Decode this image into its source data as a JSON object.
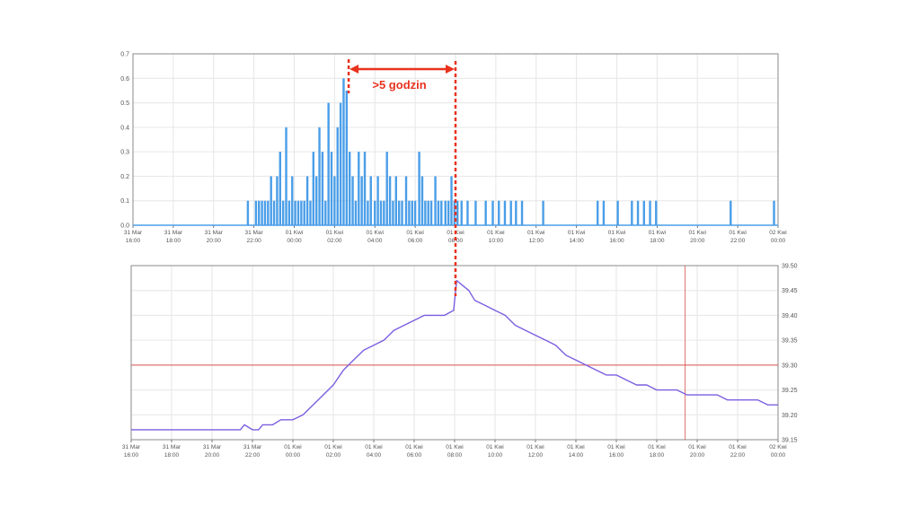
{
  "colors": {
    "bar": "#4a9ee8",
    "line": "#7c5ee0",
    "annotation": "#e8321e",
    "reference": "#d9534f",
    "grid": "#e6e6e6",
    "axis": "#555555",
    "frame": "#888888"
  },
  "x_ticks": [
    [
      "31 Mar",
      "16:00"
    ],
    [
      "31 Mar",
      "18:00"
    ],
    [
      "31 Mar",
      "20:00"
    ],
    [
      "31 Mar",
      "22:00"
    ],
    [
      "01 Kwi",
      "00:00"
    ],
    [
      "01 Kwi",
      "02:00"
    ],
    [
      "01 Kwi",
      "04:00"
    ],
    [
      "01 Kwi",
      "06:00"
    ],
    [
      "01 Kwi",
      "08:00"
    ],
    [
      "01 Kwi",
      "10:00"
    ],
    [
      "01 Kwi",
      "12:00"
    ],
    [
      "01 Kwi",
      "14:00"
    ],
    [
      "01 Kwi",
      "16:00"
    ],
    [
      "01 Kwi",
      "18:00"
    ],
    [
      "01 Kwi",
      "20:00"
    ],
    [
      "01 Kwi",
      "22:00"
    ],
    [
      "02 Kwi",
      "00:00"
    ]
  ],
  "annotation": {
    "label": ">5 godzin",
    "from_hour": 2.7,
    "to_hour": 8.0
  },
  "chart_data": [
    {
      "type": "bar",
      "x_unit": "hours relative to 01 Kwi 00:00",
      "xlim": [
        -8,
        24
      ],
      "ylim": [
        0,
        0.7
      ],
      "yticks": [
        "0.0",
        "0.1",
        "0.2",
        "0.3",
        "0.4",
        "0.5",
        "0.6",
        "0.7"
      ],
      "y_axis_side": "left",
      "grid": true,
      "legend": "none",
      "points": [
        [
          -2.3,
          0.1
        ],
        [
          -1.9,
          0.1
        ],
        [
          -1.75,
          0.1
        ],
        [
          -1.6,
          0.1
        ],
        [
          -1.45,
          0.1
        ],
        [
          -1.3,
          0.1
        ],
        [
          -1.15,
          0.2
        ],
        [
          -1.0,
          0.1
        ],
        [
          -0.85,
          0.2
        ],
        [
          -0.7,
          0.3
        ],
        [
          -0.55,
          0.1
        ],
        [
          -0.4,
          0.4
        ],
        [
          -0.25,
          0.1
        ],
        [
          -0.1,
          0.2
        ],
        [
          0.05,
          0.1
        ],
        [
          0.2,
          0.1
        ],
        [
          0.35,
          0.1
        ],
        [
          0.5,
          0.1
        ],
        [
          0.65,
          0.2
        ],
        [
          0.8,
          0.1
        ],
        [
          0.95,
          0.3
        ],
        [
          1.1,
          0.2
        ],
        [
          1.25,
          0.4
        ],
        [
          1.4,
          0.3
        ],
        [
          1.55,
          0.1
        ],
        [
          1.7,
          0.5
        ],
        [
          1.85,
          0.3
        ],
        [
          2.0,
          0.2
        ],
        [
          2.15,
          0.4
        ],
        [
          2.3,
          0.5
        ],
        [
          2.45,
          0.6
        ],
        [
          2.6,
          0.55
        ],
        [
          2.75,
          0.3
        ],
        [
          2.9,
          0.2
        ],
        [
          3.05,
          0.1
        ],
        [
          3.2,
          0.3
        ],
        [
          3.35,
          0.2
        ],
        [
          3.5,
          0.3
        ],
        [
          3.65,
          0.1
        ],
        [
          3.8,
          0.2
        ],
        [
          4.0,
          0.1
        ],
        [
          4.15,
          0.2
        ],
        [
          4.3,
          0.1
        ],
        [
          4.45,
          0.1
        ],
        [
          4.6,
          0.3
        ],
        [
          4.75,
          0.2
        ],
        [
          4.9,
          0.1
        ],
        [
          5.05,
          0.2
        ],
        [
          5.2,
          0.1
        ],
        [
          5.35,
          0.1
        ],
        [
          5.55,
          0.2
        ],
        [
          5.7,
          0.1
        ],
        [
          5.85,
          0.1
        ],
        [
          6.0,
          0.1
        ],
        [
          6.2,
          0.3
        ],
        [
          6.35,
          0.2
        ],
        [
          6.5,
          0.1
        ],
        [
          6.65,
          0.1
        ],
        [
          6.8,
          0.1
        ],
        [
          7.0,
          0.2
        ],
        [
          7.15,
          0.1
        ],
        [
          7.3,
          0.1
        ],
        [
          7.5,
          0.1
        ],
        [
          7.65,
          0.1
        ],
        [
          7.8,
          0.2
        ],
        [
          7.95,
          0.1
        ],
        [
          8.1,
          0.1
        ],
        [
          8.3,
          0.1
        ],
        [
          8.6,
          0.1
        ],
        [
          9.0,
          0.1
        ],
        [
          9.5,
          0.1
        ],
        [
          9.85,
          0.1
        ],
        [
          10.15,
          0.1
        ],
        [
          10.45,
          0.1
        ],
        [
          10.75,
          0.1
        ],
        [
          11.0,
          0.1
        ],
        [
          11.3,
          0.1
        ],
        [
          12.35,
          0.1
        ],
        [
          15.05,
          0.1
        ],
        [
          15.35,
          0.1
        ],
        [
          16.05,
          0.1
        ],
        [
          16.75,
          0.1
        ],
        [
          17.05,
          0.1
        ],
        [
          17.35,
          0.1
        ],
        [
          17.65,
          0.1
        ],
        [
          17.95,
          0.1
        ],
        [
          21.65,
          0.1
        ],
        [
          23.8,
          0.1
        ]
      ]
    },
    {
      "type": "line",
      "x_unit": "hours relative to 01 Kwi 00:00",
      "xlim": [
        -8,
        24
      ],
      "ylim": [
        39.15,
        39.5
      ],
      "yticks": [
        "39.15",
        "39.20",
        "39.25",
        "39.30",
        "39.35",
        "39.40",
        "39.45",
        "39.50"
      ],
      "y_axis_side": "right",
      "grid": true,
      "legend": "none",
      "reference_line_y": 39.3,
      "reference_line_x": 19.4,
      "points": [
        [
          -8.0,
          39.17
        ],
        [
          -2.6,
          39.17
        ],
        [
          -2.4,
          39.18
        ],
        [
          -2.0,
          39.17
        ],
        [
          -1.7,
          39.17
        ],
        [
          -1.5,
          39.18
        ],
        [
          -1.0,
          39.18
        ],
        [
          -0.6,
          39.19
        ],
        [
          0.0,
          39.19
        ],
        [
          0.5,
          39.2
        ],
        [
          1.0,
          39.22
        ],
        [
          1.5,
          39.24
        ],
        [
          2.0,
          39.26
        ],
        [
          2.5,
          39.29
        ],
        [
          3.0,
          39.31
        ],
        [
          3.5,
          39.33
        ],
        [
          4.0,
          39.34
        ],
        [
          4.5,
          39.35
        ],
        [
          5.0,
          39.37
        ],
        [
          5.5,
          39.38
        ],
        [
          6.0,
          39.39
        ],
        [
          6.5,
          39.4
        ],
        [
          7.0,
          39.4
        ],
        [
          7.5,
          39.4
        ],
        [
          7.95,
          39.41
        ],
        [
          8.1,
          39.47
        ],
        [
          8.4,
          39.46
        ],
        [
          8.7,
          39.45
        ],
        [
          9.0,
          39.43
        ],
        [
          9.5,
          39.42
        ],
        [
          10.0,
          39.41
        ],
        [
          10.5,
          39.4
        ],
        [
          11.0,
          39.38
        ],
        [
          11.5,
          39.37
        ],
        [
          12.0,
          39.36
        ],
        [
          12.5,
          39.35
        ],
        [
          13.0,
          39.34
        ],
        [
          13.5,
          39.32
        ],
        [
          14.0,
          39.31
        ],
        [
          14.5,
          39.3
        ],
        [
          15.0,
          39.29
        ],
        [
          15.5,
          39.28
        ],
        [
          16.0,
          39.28
        ],
        [
          16.5,
          39.27
        ],
        [
          17.0,
          39.26
        ],
        [
          17.5,
          39.26
        ],
        [
          18.0,
          39.25
        ],
        [
          18.5,
          39.25
        ],
        [
          19.0,
          39.25
        ],
        [
          19.5,
          39.24
        ],
        [
          20.0,
          39.24
        ],
        [
          20.5,
          39.24
        ],
        [
          21.0,
          39.24
        ],
        [
          21.5,
          39.23
        ],
        [
          22.0,
          39.23
        ],
        [
          22.5,
          39.23
        ],
        [
          23.0,
          39.23
        ],
        [
          23.5,
          39.22
        ],
        [
          24.0,
          39.22
        ]
      ]
    }
  ]
}
